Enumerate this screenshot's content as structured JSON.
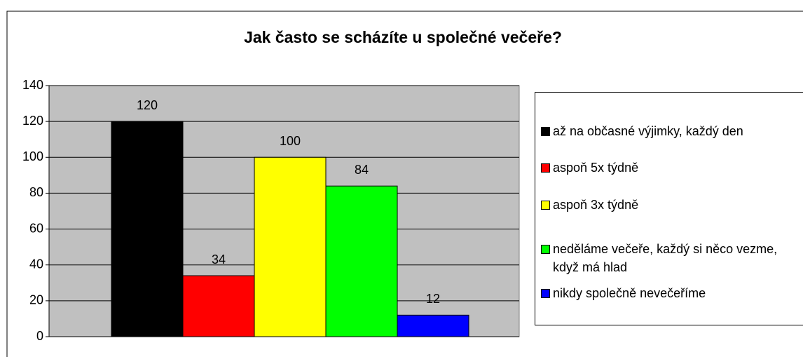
{
  "chart_data": {
    "type": "bar",
    "title": "Jak často se scházíte u společné večeře?",
    "series": [
      {
        "name": "až na občasné výjimky, každý den",
        "color": "#000000",
        "values": [
          120
        ]
      },
      {
        "name": "aspoň 5x týdně",
        "color": "#ff0000",
        "values": [
          34
        ]
      },
      {
        "name": "aspoň 3x týdně",
        "color": "#ffff00",
        "values": [
          100
        ]
      },
      {
        "name": "neděláme večeře, každý si něco vezme, když má hlad",
        "color": "#00ff00",
        "values": [
          84
        ]
      },
      {
        "name": "nikdy společně nevečeříme",
        "color": "#0000ff",
        "values": [
          12
        ]
      }
    ],
    "ylim": [
      0,
      140
    ],
    "yticks": [
      0,
      20,
      40,
      60,
      80,
      100,
      120,
      140
    ],
    "grid": true,
    "legend": "right"
  }
}
